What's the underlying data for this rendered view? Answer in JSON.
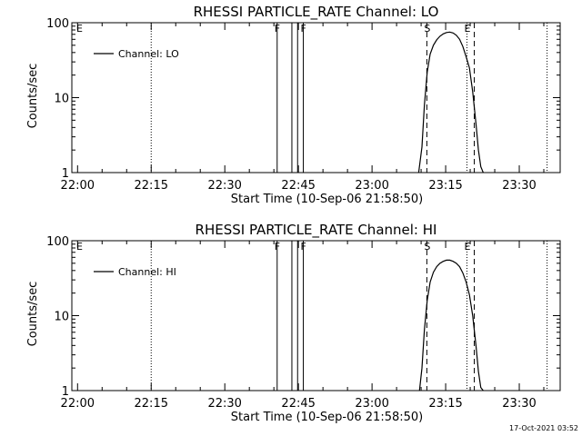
{
  "chart_data": [
    {
      "type": "line",
      "title": "RHESSI PARTICLE_RATE Channel: LO",
      "xlabel": "Start Time (10-Sep-06 21:58:50)",
      "ylabel": "Counts/sec",
      "y_scale": "log",
      "xlim": [
        "21:58:50",
        "23:38:20"
      ],
      "ylim": [
        1,
        100
      ],
      "x_ticks": [
        "22:00",
        "22:15",
        "22:30",
        "22:45",
        "23:00",
        "23:15",
        "23:30"
      ],
      "y_ticks": [
        "1",
        "10",
        "100"
      ],
      "legend": {
        "position": "top-left",
        "entries": [
          "Channel: LO"
        ]
      },
      "series": [
        {
          "name": "Channel: LO",
          "x": [
            "23:09:30",
            "23:10:10",
            "23:10:40",
            "23:11:15",
            "23:11:50",
            "23:12:30",
            "23:13:10",
            "23:13:50",
            "23:14:30",
            "23:15:10",
            "23:15:50",
            "23:16:30",
            "23:17:10",
            "23:17:50",
            "23:18:30",
            "23:19:10",
            "23:19:50",
            "23:20:30",
            "23:21:10",
            "23:21:40",
            "23:22:10",
            "23:22:40"
          ],
          "y": [
            1.0,
            2.2,
            8.0,
            22.0,
            38.0,
            50.0,
            59.0,
            66.0,
            71.0,
            74.0,
            75.0,
            73.0,
            68.0,
            60.0,
            48.0,
            35.0,
            25.0,
            12.0,
            4.5,
            2.0,
            1.2,
            1.0
          ]
        }
      ],
      "annotations": [
        {
          "text": "E",
          "x": "21:58:50",
          "line": "dotted"
        },
        {
          "text": "",
          "x": "22:15:00",
          "line": "dotted"
        },
        {
          "text": "F",
          "x": "22:40:40",
          "line": "solid"
        },
        {
          "text": "",
          "x": "22:43:40",
          "line": "solid"
        },
        {
          "text": "",
          "x": "22:44:50",
          "line": "solid"
        },
        {
          "text": "F",
          "x": "22:46:00",
          "line": "solid"
        },
        {
          "text": "S",
          "x": "23:11:10",
          "line": "dashed"
        },
        {
          "text": "E",
          "x": "23:19:20",
          "line": "dotted"
        },
        {
          "text": "",
          "x": "23:20:50",
          "line": "dashed"
        },
        {
          "text": "",
          "x": "23:35:40",
          "line": "dotted"
        }
      ]
    },
    {
      "type": "line",
      "title": "RHESSI PARTICLE_RATE Channel: HI",
      "xlabel": "Start Time (10-Sep-06 21:58:50)",
      "ylabel": "Counts/sec",
      "y_scale": "log",
      "xlim": [
        "21:58:50",
        "23:38:20"
      ],
      "ylim": [
        1,
        100
      ],
      "x_ticks": [
        "22:00",
        "22:15",
        "22:30",
        "22:45",
        "23:00",
        "23:15",
        "23:30"
      ],
      "y_ticks": [
        "1",
        "10",
        "100"
      ],
      "legend": {
        "position": "top-left",
        "entries": [
          "Channel: HI"
        ]
      },
      "series": [
        {
          "name": "Channel: HI",
          "x": [
            "23:09:40",
            "23:10:10",
            "23:10:40",
            "23:11:15",
            "23:11:50",
            "23:12:30",
            "23:13:10",
            "23:13:50",
            "23:14:30",
            "23:15:10",
            "23:15:50",
            "23:16:30",
            "23:17:10",
            "23:17:50",
            "23:18:30",
            "23:19:10",
            "23:19:50",
            "23:20:30",
            "23:21:10",
            "23:21:40",
            "23:22:10",
            "23:22:40"
          ],
          "y": [
            1.0,
            2.0,
            6.5,
            16.0,
            28.0,
            38.0,
            45.0,
            50.0,
            53.0,
            55.0,
            55.0,
            53.0,
            50.0,
            45.0,
            37.0,
            28.0,
            19.0,
            10.0,
            4.0,
            1.8,
            1.1,
            1.0
          ]
        }
      ],
      "annotations": [
        {
          "text": "E",
          "x": "21:58:50",
          "line": "dotted"
        },
        {
          "text": "",
          "x": "22:15:00",
          "line": "dotted"
        },
        {
          "text": "F",
          "x": "22:40:40",
          "line": "solid"
        },
        {
          "text": "",
          "x": "22:43:40",
          "line": "solid"
        },
        {
          "text": "",
          "x": "22:44:50",
          "line": "solid"
        },
        {
          "text": "F",
          "x": "22:46:00",
          "line": "solid"
        },
        {
          "text": "S",
          "x": "23:11:10",
          "line": "dashed"
        },
        {
          "text": "E",
          "x": "23:19:20",
          "line": "dotted"
        },
        {
          "text": "",
          "x": "23:20:50",
          "line": "dashed"
        },
        {
          "text": "",
          "x": "23:35:40",
          "line": "dotted"
        }
      ]
    }
  ],
  "footer": {
    "timestamp": "17-Oct-2021 03:52"
  }
}
